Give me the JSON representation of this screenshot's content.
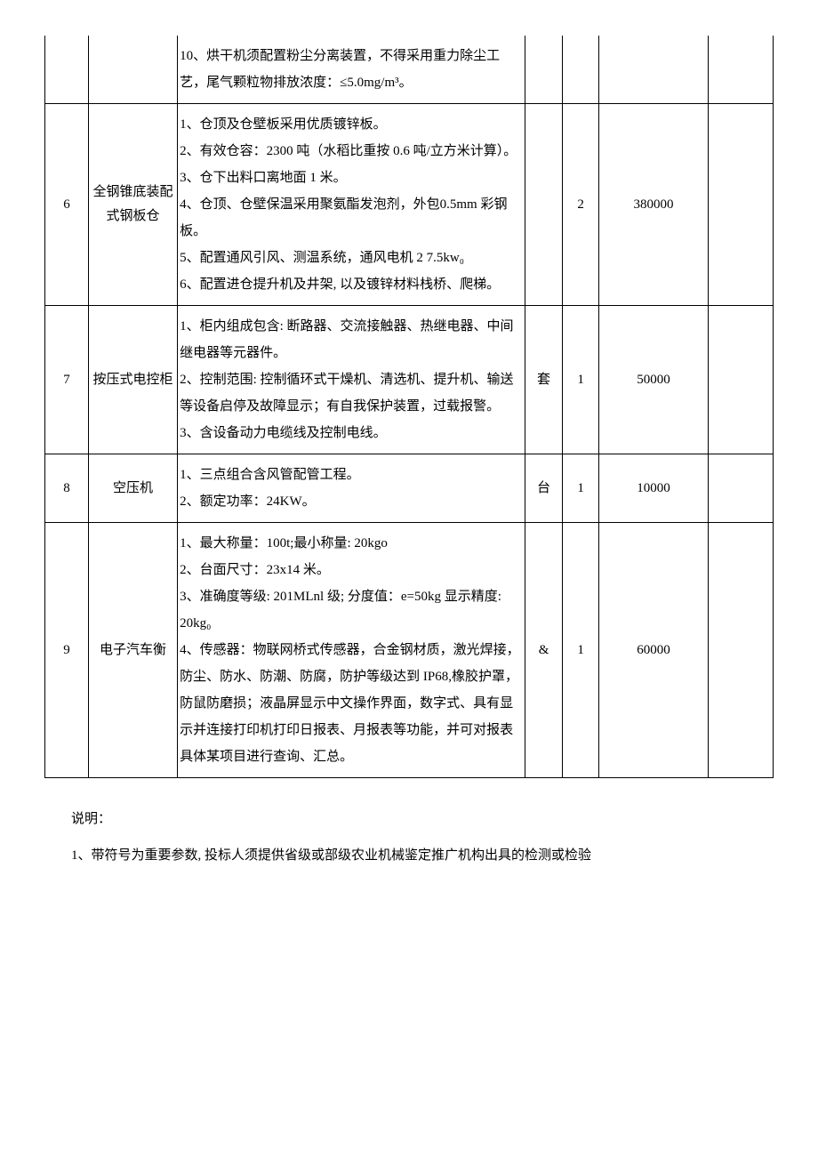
{
  "table": {
    "rows": [
      {
        "num": "",
        "name": "",
        "spec": [
          "10、烘干机须配置粉尘分离装置，不得采用重力除尘工艺，尾气颗粒物排放浓度：≤5.0mg/m³。"
        ],
        "unit": "",
        "qty": "",
        "price": "",
        "last": ""
      },
      {
        "num": "6",
        "name": "全钢锥底装配式钢板仓",
        "spec": [
          "1、仓顶及仓壁板采用优质镀锌板。",
          "2、有效仓容：2300 吨（水稻比重按 0.6 吨/立方米计算）。",
          "3、仓下出料口离地面 1 米。",
          "4、仓顶、仓壁保温采用聚氨酯发泡剂，外包0.5mm 彩钢板。",
          "5、配置通风引风、测温系统，通风电机 2 7.5kw₀",
          "6、配置进仓提升机及井架, 以及镀锌材料栈桥、爬梯。"
        ],
        "unit": "",
        "qty": "2",
        "price": "380000",
        "last": ""
      },
      {
        "num": "7",
        "name": "按压式电控柜",
        "spec": [
          "1、柜内组成包含: 断路器、交流接触器、热继电器、中间继电器等元器件。",
          "2、控制范围: 控制循环式干燥机、清选机、提升机、输送等设备启停及故障显示；有自我保护装置，过载报警。",
          "3、含设备动力电缆线及控制电线。"
        ],
        "unit": "套",
        "qty": "1",
        "price": "50000",
        "last": ""
      },
      {
        "num": "8",
        "name": "空压机",
        "spec": [
          "1、三点组合含风管配管工程。",
          "2、额定功率：24KW。"
        ],
        "unit": "台",
        "qty": "1",
        "price": "10000",
        "last": ""
      },
      {
        "num": "9",
        "name": "电子汽车衡",
        "spec": [
          "1、最大称量：100t;最小称量: 20kgo",
          "2、台面尺寸：23x14 米。",
          "3、准确度等级: 201MLnl 级; 分度值：e=50kg 显示精度: 20kg₀",
          "4、传感器：物联网桥式传感器，合金钢材质，激光焊接，防尘、防水、防潮、防腐，防护等级达到 IP68,橡胶护罩，防鼠防磨损；液晶屏显示中文操作界面，数字式、具有显示并连接打印机打印日报表、月报表等功能，并可对报表具体某项目进行查询、汇总。"
        ],
        "unit": "&",
        "qty": "1",
        "price": "60000",
        "last": ""
      }
    ]
  },
  "notes": {
    "heading": "说明：",
    "line1": "1、带符号为重要参数, 投标人须提供省级或部级农业机械鉴定推广机构出具的检测或检验"
  },
  "styles": {
    "background_color": "#ffffff",
    "text_color": "#000000",
    "border_color": "#000000",
    "font_family": "SimSun",
    "base_fontsize": 15
  }
}
